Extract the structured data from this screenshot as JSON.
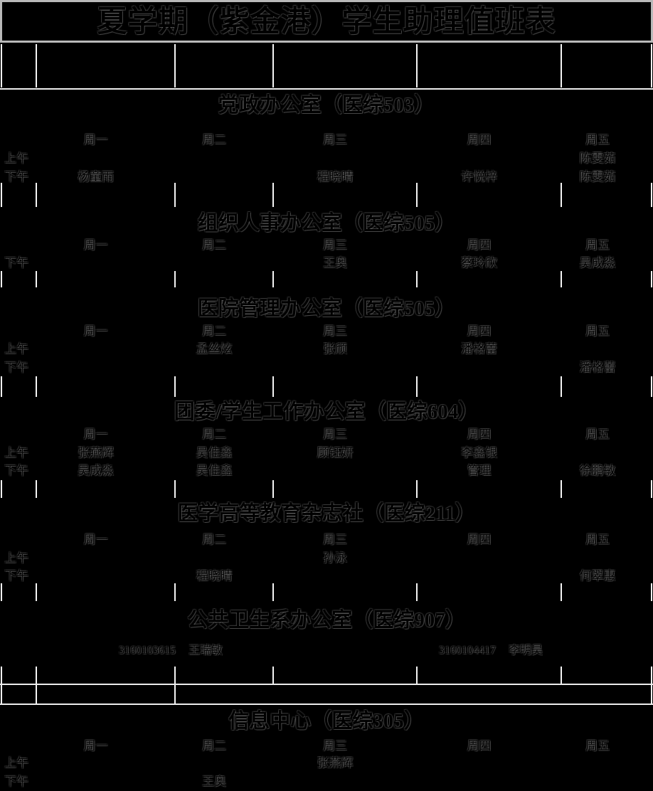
{
  "page_title": "夏学期（紫金港）学生助理值班表",
  "days": [
    "周一",
    "周二",
    "周三",
    "周四",
    "周五"
  ],
  "time_labels": {
    "morning": "上午",
    "afternoon": "下午"
  },
  "colors": {
    "background": "#000000",
    "text": "#000000",
    "grid_line": "#f5f5f5",
    "title_border": "#b9b9b9"
  },
  "sections": [
    {
      "title": "党政办公室（医综503）",
      "rows": [
        {
          "label": "上午",
          "cells": [
            "",
            "",
            "",
            "",
            "陈雯茹"
          ]
        },
        {
          "label": "下午",
          "cells": [
            "杨童雨",
            "",
            "程晓晴",
            "许悦梓",
            "陈雯茹"
          ]
        }
      ]
    },
    {
      "title": "组织人事办公室（医综505）",
      "rows": [
        {
          "label": "下午",
          "cells": [
            "",
            "",
            "王奥",
            "蔡玲欣",
            "吴成淼"
          ]
        }
      ]
    },
    {
      "title": "医院管理办公室（医综505）",
      "rows": [
        {
          "label": "上午",
          "cells": [
            "",
            "孟丝炫",
            "张颀",
            "潘格蕾",
            ""
          ]
        },
        {
          "label": "下午",
          "cells": [
            "",
            "",
            "",
            "",
            "潘格蕾"
          ]
        }
      ]
    },
    {
      "title": "团委/学生工作办公室（医综604）",
      "rows": [
        {
          "label": "上午",
          "cells": [
            "张燕辉",
            "吴佳鑫",
            "顾钰妍",
            "李鑫银",
            ""
          ]
        },
        {
          "label": "下午",
          "cells": [
            "吴成淼",
            "吴佳鑫",
            "",
            "管理",
            "徐鹏敏"
          ]
        }
      ]
    },
    {
      "title": "医学高等教育杂志社（医综211）",
      "rows": [
        {
          "label": "上午",
          "cells": [
            "",
            "",
            "孙泳",
            "",
            ""
          ]
        },
        {
          "label": "下午",
          "cells": [
            "",
            "程晓晴",
            "",
            "",
            "何翠惠"
          ]
        }
      ]
    },
    {
      "title": "公共卫生系办公室（医综907）",
      "entries": [
        {
          "id": "3160103615",
          "name": "王瑞敏"
        },
        {
          "id": "3160104417",
          "name": "李明昊"
        }
      ]
    },
    {
      "title": "信息中心（医综305）",
      "rows": [
        {
          "label": "上午",
          "cells": [
            "",
            "",
            "张燕辉",
            "",
            ""
          ]
        },
        {
          "label": "下午",
          "cells": [
            "",
            "王奥",
            "",
            "",
            ""
          ]
        }
      ]
    }
  ]
}
